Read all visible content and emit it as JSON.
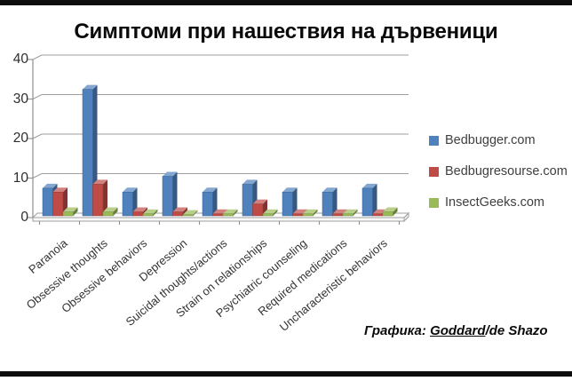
{
  "title": "Симптоми при нашествия на дървеници",
  "credit": {
    "prefix": "Графика: ",
    "underlined": "Goddard",
    "suffix": "/de Shazo"
  },
  "chart_data": {
    "type": "bar",
    "style": "3d-clustered",
    "title": "Симптоми при нашествия на дървеници",
    "categories": [
      "Paranoia",
      "Obsessive thoughts",
      "Obsessive behaviors",
      "Depression",
      "Suicidal thoughts/actions",
      "Strain on relationships",
      "Psychiatric counseling",
      "Required medications",
      "Uncharacteristic behaviors"
    ],
    "series": [
      {
        "name": "Bedbugger.com",
        "color": "#4f81bd",
        "values": [
          7,
          32,
          6,
          10,
          6,
          8,
          6,
          6,
          7
        ]
      },
      {
        "name": "Bedbugresourse.com",
        "color": "#bf4b47",
        "values": [
          6,
          8,
          1,
          1,
          0.5,
          3,
          0.5,
          0.5,
          0.5
        ]
      },
      {
        "name": "InsectGeeks.com",
        "color": "#9aba58",
        "values": [
          1,
          1,
          0.5,
          0.3,
          0.5,
          0.5,
          0.5,
          0.5,
          1
        ]
      }
    ],
    "ylim": [
      0,
      40
    ],
    "yticks": [
      0,
      10,
      20,
      30,
      40
    ],
    "xlabel": "",
    "ylabel": "",
    "grid": true,
    "legend_position": "right",
    "axis_color": "#8f8f8f",
    "grid_color": "#9f9f9f"
  }
}
